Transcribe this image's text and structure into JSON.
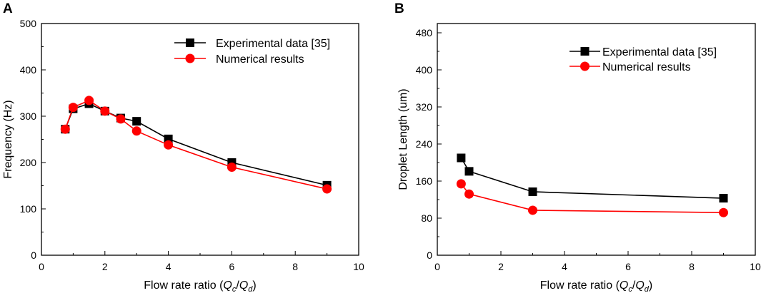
{
  "chart_data": [
    {
      "type": "line",
      "panel": "A",
      "xlabel": "Flow rate ratio",
      "xlabel_var_num": "Q",
      "xlabel_sub_num": "c",
      "xlabel_var_den": "Q",
      "xlabel_sub_den": "d",
      "ylabel": "Frequency (Hz)",
      "xlim": [
        0,
        10
      ],
      "ylim": [
        0,
        500
      ],
      "xticks": [
        0,
        2,
        4,
        6,
        8,
        10
      ],
      "yticks": [
        0,
        100,
        200,
        300,
        400,
        500
      ],
      "legend_position": "top-right",
      "series": [
        {
          "name": "Experimental data [35]",
          "color": "#000000",
          "marker": "square",
          "x": [
            0.75,
            1.0,
            1.5,
            2.0,
            2.5,
            3.0,
            4.0,
            6.0,
            9.0
          ],
          "y": [
            272,
            316,
            327,
            311,
            296,
            289,
            251,
            200,
            151
          ]
        },
        {
          "name": "Numerical results",
          "color": "#ff0000",
          "marker": "circle",
          "x": [
            0.75,
            1.0,
            1.5,
            2.0,
            2.5,
            3.0,
            4.0,
            6.0,
            9.0
          ],
          "y": [
            272,
            319,
            334,
            311,
            294,
            268,
            238,
            190,
            143
          ]
        }
      ]
    },
    {
      "type": "line",
      "panel": "B",
      "xlabel": "Flow rate ratio",
      "xlabel_var_num": "Q",
      "xlabel_sub_num": "c",
      "xlabel_var_den": "Q",
      "xlabel_sub_den": "d",
      "ylabel": "Droplet Length (um)",
      "xlim": [
        0,
        10
      ],
      "ylim": [
        0,
        500
      ],
      "xticks": [
        0,
        2,
        4,
        6,
        8,
        10
      ],
      "yticks": [
        0,
        80,
        160,
        240,
        320,
        400,
        480
      ],
      "legend_position": "top-right",
      "series": [
        {
          "name": "Experimental data [35]",
          "color": "#000000",
          "marker": "square",
          "x": [
            0.75,
            1.0,
            3.0,
            9.0
          ],
          "y": [
            210,
            181,
            137,
            123
          ]
        },
        {
          "name": "Numerical results",
          "color": "#ff0000",
          "marker": "circle",
          "x": [
            0.75,
            1.0,
            3.0,
            9.0
          ],
          "y": [
            154,
            132,
            97,
            92
          ]
        }
      ]
    }
  ]
}
